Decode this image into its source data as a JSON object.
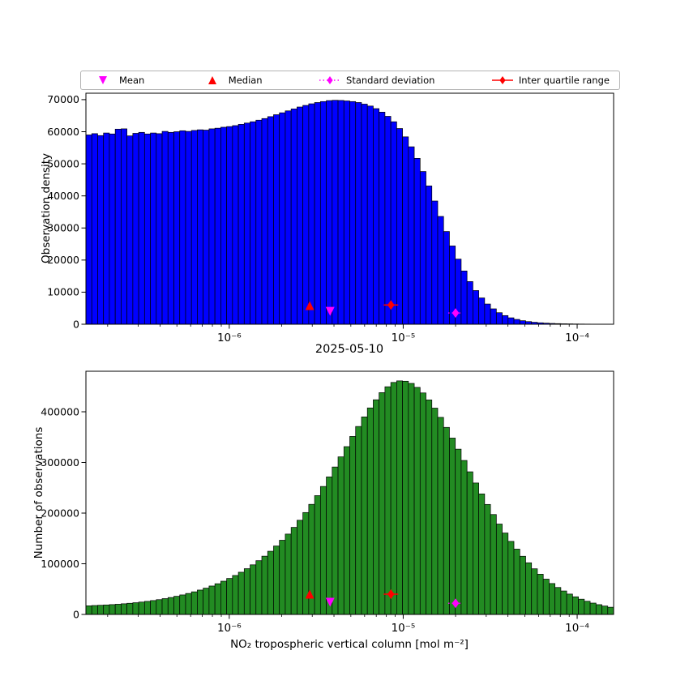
{
  "figure": {
    "date_title": "2025-05-10"
  },
  "legend": {
    "items": [
      {
        "label": "Mean",
        "marker": "triangle-down",
        "color": "#FF00FF",
        "linestyle": "none"
      },
      {
        "label": "Median",
        "marker": "triangle-up",
        "color": "#FF0000",
        "linestyle": "none"
      },
      {
        "label": "Standard deviation",
        "marker": "diamond",
        "color": "#FF00FF",
        "linestyle": "dotted"
      },
      {
        "label": "Inter quartile range",
        "marker": "diamond",
        "color": "#FF0000",
        "linestyle": "solid"
      }
    ]
  },
  "chart_data": [
    {
      "name": "observation-density",
      "type": "bar",
      "subtype": "histogram",
      "x_scale": "log",
      "x_min": 1.5e-07,
      "x_max": 0.000162,
      "ylabel": "Observation density",
      "ylim": [
        0,
        72000
      ],
      "bar_color": "#0000FF",
      "edge_color": "#000000",
      "yticks": [
        {
          "v": 0,
          "label": "0"
        },
        {
          "v": 10000,
          "label": "10000"
        },
        {
          "v": 20000,
          "label": "20000"
        },
        {
          "v": 30000,
          "label": "30000"
        },
        {
          "v": 40000,
          "label": "40000"
        },
        {
          "v": 50000,
          "label": "50000"
        },
        {
          "v": 60000,
          "label": "60000"
        },
        {
          "v": 70000,
          "label": "70000"
        }
      ],
      "xticks": [
        {
          "v": 1e-06,
          "label": "10⁻⁶"
        },
        {
          "v": 1e-05,
          "label": "10⁻⁵"
        },
        {
          "v": 0.0001,
          "label": "10⁻⁴"
        }
      ],
      "values": [
        59000,
        59400,
        58800,
        59600,
        59300,
        60800,
        60900,
        58700,
        59500,
        59800,
        59300,
        59600,
        59400,
        60100,
        59800,
        60000,
        60300,
        60100,
        60400,
        60600,
        60500,
        60900,
        61100,
        61400,
        61600,
        61900,
        62300,
        62700,
        63100,
        63600,
        64100,
        64700,
        65300,
        65900,
        66500,
        67100,
        67700,
        68200,
        68700,
        69100,
        69400,
        69700,
        69800,
        69750,
        69600,
        69400,
        69100,
        68600,
        68000,
        67200,
        66100,
        64800,
        63100,
        61000,
        58400,
        55300,
        51700,
        47600,
        43100,
        38400,
        33600,
        28900,
        24400,
        20300,
        16600,
        13300,
        10500,
        8200,
        6300,
        4800,
        3600,
        2700,
        2000,
        1500,
        1100,
        820,
        610,
        450,
        340,
        250,
        190,
        140,
        110,
        80,
        60,
        45,
        35,
        26,
        20,
        15
      ],
      "markers": [
        {
          "name": "median",
          "marker": "triangle-up",
          "color": "#FF0000",
          "linestyle": "none",
          "x": 2.9e-06,
          "y": 5800
        },
        {
          "name": "mean",
          "marker": "triangle-down",
          "color": "#FF00FF",
          "linestyle": "none",
          "x": 3.8e-06,
          "y": 4000
        },
        {
          "name": "iqr",
          "marker": "diamond",
          "color": "#FF0000",
          "linestyle": "solid",
          "x": 8.5e-06,
          "y": 6000
        },
        {
          "name": "std",
          "marker": "diamond",
          "color": "#FF00FF",
          "linestyle": "dotted",
          "x": 2e-05,
          "y": 3500
        }
      ]
    },
    {
      "name": "observation-counts",
      "type": "bar",
      "subtype": "histogram",
      "x_scale": "log",
      "x_min": 1.5e-07,
      "x_max": 0.000162,
      "ylabel": "Number of observations",
      "xlabel": "NO₂ tropospheric vertical column [mol m⁻²]",
      "ylim": [
        0,
        480000
      ],
      "bar_color": "#228B22",
      "edge_color": "#000000",
      "yticks": [
        {
          "v": 0,
          "label": "0"
        },
        {
          "v": 100000,
          "label": "100000"
        },
        {
          "v": 200000,
          "label": "200000"
        },
        {
          "v": 300000,
          "label": "300000"
        },
        {
          "v": 400000,
          "label": "400000"
        }
      ],
      "xticks": [
        {
          "v": 1e-06,
          "label": "10⁻⁶"
        },
        {
          "v": 1e-05,
          "label": "10⁻⁵"
        },
        {
          "v": 0.0001,
          "label": "10⁻⁴"
        }
      ],
      "values": [
        17000,
        17600,
        18100,
        18700,
        19400,
        20100,
        21000,
        22000,
        23100,
        24400,
        25800,
        27400,
        29200,
        31200,
        33400,
        35800,
        38500,
        41400,
        44600,
        48100,
        51900,
        56100,
        60600,
        65600,
        71000,
        76900,
        83300,
        90300,
        97900,
        106100,
        115000,
        124700,
        135100,
        146400,
        158600,
        171800,
        185900,
        201100,
        217300,
        234500,
        252600,
        271500,
        291000,
        311000,
        331200,
        351300,
        371000,
        389900,
        407600,
        423700,
        437800,
        449400,
        457900,
        461000,
        460300,
        456000,
        448200,
        437200,
        423400,
        407200,
        389000,
        369200,
        348100,
        326200,
        303900,
        281500,
        259400,
        237900,
        217100,
        197200,
        178400,
        160700,
        144200,
        128900,
        114800,
        101900,
        90100,
        79400,
        69700,
        61000,
        53200,
        46300,
        40200,
        34800,
        30100,
        26000,
        22400,
        19300,
        16600,
        14200
      ],
      "markers": [
        {
          "name": "median",
          "marker": "triangle-up",
          "color": "#FF0000",
          "linestyle": "none",
          "x": 2.9e-06,
          "y": 40000
        },
        {
          "name": "mean",
          "marker": "triangle-down",
          "color": "#FF00FF",
          "linestyle": "none",
          "x": 3.8e-06,
          "y": 24000
        },
        {
          "name": "iqr",
          "marker": "diamond",
          "color": "#FF0000",
          "linestyle": "solid",
          "x": 8.5e-06,
          "y": 40000
        },
        {
          "name": "std",
          "marker": "diamond",
          "color": "#FF00FF",
          "linestyle": "dotted",
          "x": 2e-05,
          "y": 22000
        }
      ]
    }
  ]
}
